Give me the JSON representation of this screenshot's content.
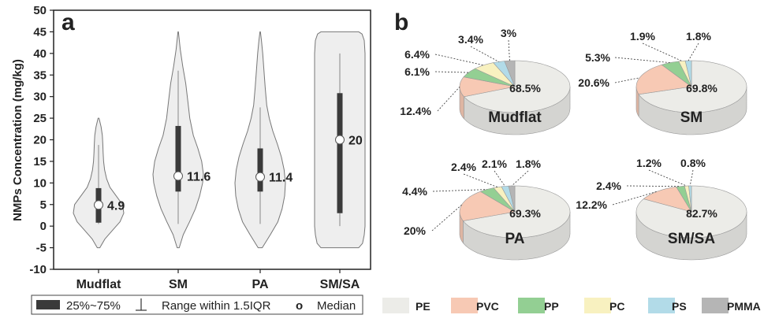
{
  "panels": {
    "a": "a",
    "b": "b"
  },
  "chart_data": [
    {
      "type": "violin",
      "ylabel": "NMPs Concentration (mg/kg)",
      "ylim": [
        -10,
        50
      ],
      "yticks": [
        -10,
        -5,
        0,
        5,
        10,
        15,
        20,
        25,
        30,
        35,
        40,
        45,
        50
      ],
      "grid": false,
      "categories": [
        "Mudflat",
        "SM",
        "PA",
        "SM/SA"
      ],
      "violins": [
        {
          "name": "Mudflat",
          "median": 4.9,
          "median_label": "4.9",
          "q1": 0.8,
          "q3": 8.8,
          "whisker_low": 0.5,
          "whisker_high": 18.8,
          "min": -5,
          "max": 25,
          "density": [
            [
              -5,
              0.05
            ],
            [
              -3,
              0.25
            ],
            [
              -1,
              0.55
            ],
            [
              1,
              0.85
            ],
            [
              3,
              1.0
            ],
            [
              5,
              0.95
            ],
            [
              7,
              0.7
            ],
            [
              9,
              0.45
            ],
            [
              11,
              0.32
            ],
            [
              13,
              0.24
            ],
            [
              15,
              0.2
            ],
            [
              17,
              0.18
            ],
            [
              19,
              0.17
            ],
            [
              21,
              0.15
            ],
            [
              23,
              0.1
            ],
            [
              25,
              0.02
            ]
          ]
        },
        {
          "name": "SM",
          "median": 11.6,
          "median_label": "11.6",
          "q1": 8.0,
          "q3": 23.2,
          "whisker_low": 0.5,
          "whisker_high": 36,
          "min": -5,
          "max": 45,
          "density": [
            [
              -5,
              0.04
            ],
            [
              -2,
              0.2
            ],
            [
              1,
              0.45
            ],
            [
              4,
              0.68
            ],
            [
              7,
              0.85
            ],
            [
              10,
              0.97
            ],
            [
              12,
              1.0
            ],
            [
              15,
              0.93
            ],
            [
              18,
              0.78
            ],
            [
              21,
              0.6
            ],
            [
              25,
              0.46
            ],
            [
              29,
              0.38
            ],
            [
              33,
              0.3
            ],
            [
              37,
              0.18
            ],
            [
              41,
              0.08
            ],
            [
              45,
              0.01
            ]
          ]
        },
        {
          "name": "PA",
          "median": 11.4,
          "median_label": "11.4",
          "q1": 8.0,
          "q3": 18.0,
          "whisker_low": 0.5,
          "whisker_high": 27.5,
          "min": -5,
          "max": 45,
          "density": [
            [
              -5,
              0.08
            ],
            [
              -2,
              0.4
            ],
            [
              1,
              0.7
            ],
            [
              4,
              0.87
            ],
            [
              7,
              0.97
            ],
            [
              10,
              1.0
            ],
            [
              13,
              0.95
            ],
            [
              16,
              0.84
            ],
            [
              19,
              0.68
            ],
            [
              22,
              0.5
            ],
            [
              25,
              0.36
            ],
            [
              28,
              0.26
            ],
            [
              32,
              0.2
            ],
            [
              36,
              0.15
            ],
            [
              40,
              0.1
            ],
            [
              43,
              0.05
            ],
            [
              45,
              0.01
            ]
          ]
        },
        {
          "name": "SM/SA",
          "median": 20,
          "median_label": "20",
          "q1": 3.0,
          "q3": 30.8,
          "whisker_low": 0,
          "whisker_high": 40,
          "min": -5,
          "max": 45,
          "density": [
            [
              -5,
              0.75
            ],
            [
              -4,
              0.9
            ],
            [
              -2,
              0.97
            ],
            [
              0,
              1.0
            ],
            [
              5,
              1.0
            ],
            [
              10,
              1.0
            ],
            [
              15,
              1.0
            ],
            [
              20,
              1.0
            ],
            [
              25,
              1.0
            ],
            [
              30,
              1.0
            ],
            [
              35,
              1.0
            ],
            [
              40,
              1.0
            ],
            [
              43,
              0.97
            ],
            [
              44.5,
              0.88
            ],
            [
              45,
              0.75
            ]
          ]
        }
      ]
    },
    {
      "type": "pie",
      "style": "3d",
      "legend_position": "bottom",
      "series_names": [
        "PE",
        "PVC",
        "PP",
        "PC",
        "PS",
        "PMMA"
      ],
      "colors": {
        "PE": "#ecece8",
        "PVC": "#f7c9b4",
        "PP": "#93cf93",
        "PC": "#f8f1c0",
        "PS": "#b2dbe8",
        "PMMA": "#b5b5b5"
      },
      "pies": [
        {
          "name": "Mudflat",
          "slices": [
            {
              "series": "PE",
              "value": 68.5,
              "label": "68.5%"
            },
            {
              "series": "PVC",
              "value": 12.4,
              "label": "12.4%"
            },
            {
              "series": "PP",
              "value": 6.1,
              "label": "6.1%"
            },
            {
              "series": "PC",
              "value": 6.4,
              "label": "6.4%"
            },
            {
              "series": "PS",
              "value": 3.4,
              "label": "3.4%"
            },
            {
              "series": "PMMA",
              "value": 3.0,
              "label": "3%"
            }
          ]
        },
        {
          "name": "SM",
          "slices": [
            {
              "series": "PE",
              "value": 69.8,
              "label": "69.8%"
            },
            {
              "series": "PVC",
              "value": 20.6,
              "label": "20.6%"
            },
            {
              "series": "PP",
              "value": 5.3,
              "label": "5.3%"
            },
            {
              "series": "PC",
              "value": 1.9,
              "label": "1.9%"
            },
            {
              "series": "PS",
              "value": 1.8,
              "label": "1.8%"
            }
          ]
        },
        {
          "name": "PA",
          "slices": [
            {
              "series": "PE",
              "value": 69.3,
              "label": "69.3%"
            },
            {
              "series": "PVC",
              "value": 20.0,
              "label": "20%"
            },
            {
              "series": "PP",
              "value": 4.4,
              "label": "4.4%"
            },
            {
              "series": "PC",
              "value": 2.4,
              "label": "2.4%"
            },
            {
              "series": "PS",
              "value": 2.1,
              "label": "2.1%"
            },
            {
              "series": "PMMA",
              "value": 1.8,
              "label": "1.8%"
            }
          ]
        },
        {
          "name": "SM/SA",
          "slices": [
            {
              "series": "PE",
              "value": 82.7,
              "label": "82.7%"
            },
            {
              "series": "PVC",
              "value": 12.2,
              "label": "12.2%"
            },
            {
              "series": "PP",
              "value": 2.4,
              "label": "2.4%"
            },
            {
              "series": "PC",
              "value": 1.2,
              "label": "1.2%"
            },
            {
              "series": "PS",
              "value": 0.8,
              "label": "0.8%"
            }
          ]
        }
      ]
    }
  ],
  "legend_a": {
    "box": "25%~75%",
    "range": "Range within 1.5IQR",
    "median_symbol": "o",
    "median": "Median"
  },
  "legend_b": [
    "PE",
    "PVC",
    "PP",
    "PC",
    "PS",
    "PMMA"
  ]
}
